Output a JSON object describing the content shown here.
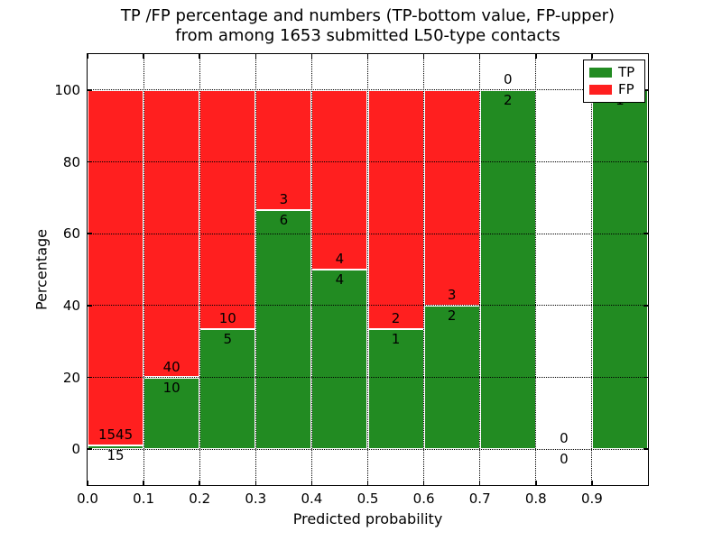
{
  "chart_data": {
    "type": "bar",
    "stacked": true,
    "title_line1": "TP /FP percentage and numbers (TP-bottom value, FP-upper)",
    "title_line2": "from among 1653 submitted L50-type contacts",
    "total_contacts": 1653,
    "xlabel": "Predicted probability",
    "ylabel": "Percentage",
    "xlim": [
      0.0,
      1.0
    ],
    "ylim": [
      -10,
      110
    ],
    "grid": true,
    "x_tick_labels": [
      "0.0",
      "0.1",
      "0.2",
      "0.3",
      "0.4",
      "0.5",
      "0.6",
      "0.7",
      "0.8",
      "0.9"
    ],
    "x_tick_values": [
      0.0,
      0.1,
      0.2,
      0.3,
      0.4,
      0.5,
      0.6,
      0.7,
      0.8,
      0.9
    ],
    "y_tick_values": [
      0,
      20,
      40,
      60,
      80,
      100
    ],
    "bins": [
      {
        "x0": 0.0,
        "x1": 0.1,
        "tp": 15,
        "fp": 1545
      },
      {
        "x0": 0.1,
        "x1": 0.2,
        "tp": 10,
        "fp": 40
      },
      {
        "x0": 0.2,
        "x1": 0.3,
        "tp": 5,
        "fp": 10
      },
      {
        "x0": 0.3,
        "x1": 0.4,
        "tp": 6,
        "fp": 3
      },
      {
        "x0": 0.4,
        "x1": 0.5,
        "tp": 4,
        "fp": 4
      },
      {
        "x0": 0.5,
        "x1": 0.6,
        "tp": 1,
        "fp": 2
      },
      {
        "x0": 0.6,
        "x1": 0.7,
        "tp": 2,
        "fp": 3
      },
      {
        "x0": 0.7,
        "x1": 0.8,
        "tp": 2,
        "fp": 0
      },
      {
        "x0": 0.8,
        "x1": 0.9,
        "tp": 0,
        "fp": 0
      },
      {
        "x0": 0.9,
        "x1": 1.0,
        "tp": 1,
        "fp": 0
      }
    ],
    "colors": {
      "tp": "#228b22",
      "fp": "#ff1f1f"
    },
    "legend": {
      "position": "upper-right",
      "entries": [
        {
          "label": "TP",
          "color": "#228b22"
        },
        {
          "label": "FP",
          "color": "#ff1f1f"
        }
      ]
    }
  }
}
